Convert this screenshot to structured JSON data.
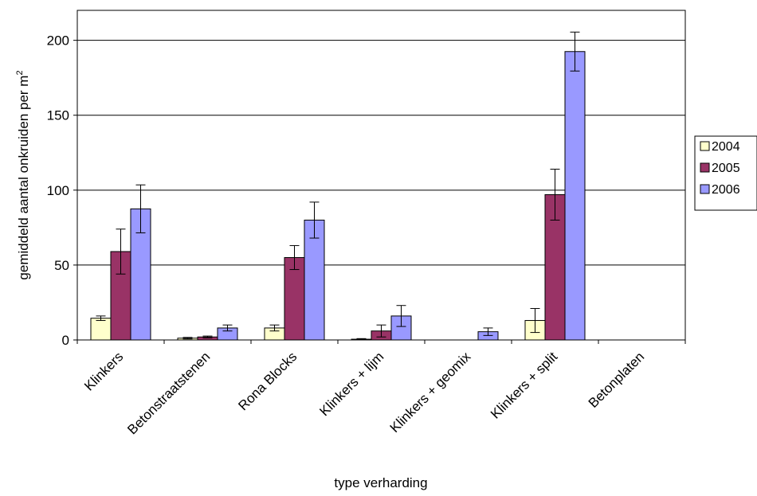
{
  "chart_data": {
    "type": "bar",
    "xlabel": "type verharding",
    "ylabel_main": "gemiddeld aantal onkruiden per m",
    "ylabel_sup": "2",
    "ylim": [
      0,
      220
    ],
    "yticks": [
      0,
      50,
      100,
      150,
      200
    ],
    "ytick_labels": [
      "0",
      "50",
      "100",
      "150",
      "200"
    ],
    "grid": true,
    "legend_position": "right",
    "categories": [
      "Klinkers",
      "Betonstraatstenen",
      "Rona Blocks",
      "Klinkers + lijm",
      "Klinkers + geomix",
      "Klinkers + split",
      "Betonplaten"
    ],
    "series": [
      {
        "name": "2004",
        "color": "#FFFFCC",
        "values": [
          14.5,
          1.2,
          8.0,
          0.5,
          0.0,
          13.0,
          0.0
        ],
        "errors": [
          1.5,
          0.5,
          2.0,
          0.4,
          0.0,
          8.0,
          0.0
        ]
      },
      {
        "name": "2005",
        "color": "#993366",
        "values": [
          59.0,
          2.0,
          55.0,
          6.0,
          0.0,
          97.0,
          0.0
        ],
        "errors": [
          15.0,
          0.6,
          8.0,
          4.0,
          0.0,
          17.0,
          0.0
        ]
      },
      {
        "name": "2006",
        "color": "#9999FF",
        "values": [
          87.5,
          8.0,
          80.0,
          16.0,
          5.5,
          192.5,
          0.0
        ],
        "errors": [
          16.0,
          2.0,
          12.0,
          7.0,
          2.5,
          13.0,
          0.0
        ]
      }
    ]
  }
}
